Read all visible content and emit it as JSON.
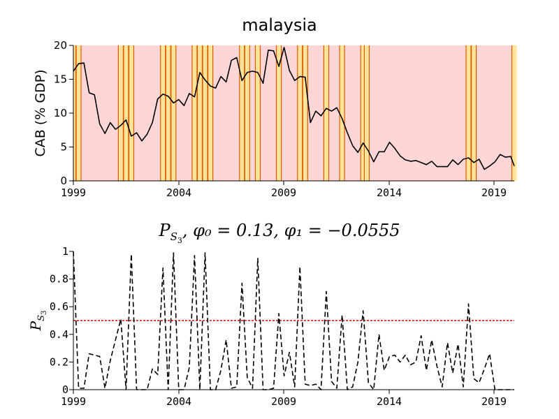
{
  "chart_data": [
    {
      "type": "line",
      "title": "malaysia",
      "xlabel": "",
      "ylabel": "CAB (% GDP)",
      "xlim": [
        1999.0,
        2019.92
      ],
      "ylim": [
        0,
        20
      ],
      "x_ticks": [
        "1999",
        "2004",
        "2009",
        "2014",
        "2019"
      ],
      "y_ticks": [
        "0",
        "5",
        "10",
        "15",
        "20"
      ],
      "background_color": "#ffd6d6",
      "crisis_band_color": "#ffe49a",
      "crisis_edge_color": "#e05a00",
      "line_color": "#000000",
      "crisis_periods": [
        1999.0,
        1999.25,
        2001.25,
        2001.5,
        2001.75,
        2003.25,
        2003.5,
        2003.75,
        2004.75,
        2005.0,
        2005.25,
        2005.5,
        2007.0,
        2007.25,
        2007.75,
        2008.75,
        2009.75,
        2010.0,
        2011.0,
        2011.75,
        2012.75,
        2012.92,
        2017.75,
        2018.0,
        2019.92
      ],
      "series": [
        {
          "x": [
            1999.0,
            1999.25,
            1999.5,
            1999.75,
            2000.0,
            2000.25,
            2000.5,
            2000.75,
            2001.0,
            2001.25,
            2001.5,
            2001.75,
            2002.0,
            2002.25,
            2002.5,
            2002.75,
            2003.0,
            2003.25,
            2003.5,
            2003.75,
            2004.0,
            2004.25,
            2004.5,
            2004.75,
            2005.0,
            2005.25,
            2005.5,
            2005.75,
            2006.0,
            2006.25,
            2006.5,
            2006.75,
            2007.0,
            2007.25,
            2007.5,
            2007.75,
            2008.0,
            2008.25,
            2008.5,
            2008.75,
            2009.0,
            2009.25,
            2009.5,
            2009.75,
            2010.0,
            2010.25,
            2010.5,
            2010.75,
            2011.0,
            2011.25,
            2011.5,
            2011.75,
            2012.0,
            2012.25,
            2012.5,
            2012.75,
            2013.0,
            2013.25,
            2013.5,
            2013.75,
            2014.0,
            2014.25,
            2014.5,
            2014.75,
            2015.0,
            2015.25,
            2015.5,
            2015.75,
            2016.0,
            2016.25,
            2016.5,
            2016.75,
            2017.0,
            2017.25,
            2017.5,
            2017.75,
            2018.0,
            2018.25,
            2018.5,
            2018.75,
            2019.0,
            2019.25,
            2019.5,
            2019.75,
            2019.92
          ],
          "values": [
            16.2,
            17.3,
            17.4,
            13.0,
            12.7,
            8.4,
            7.0,
            8.6,
            7.6,
            8.2,
            9.0,
            6.6,
            7.1,
            5.9,
            6.9,
            8.6,
            12.1,
            12.8,
            12.5,
            11.5,
            12.0,
            11.1,
            12.9,
            12.4,
            16.0,
            14.9,
            14.0,
            13.7,
            15.4,
            14.6,
            17.8,
            18.2,
            14.8,
            16.0,
            16.2,
            16.0,
            14.4,
            19.3,
            19.2,
            16.9,
            19.7,
            16.3,
            14.8,
            15.4,
            15.3,
            8.6,
            10.3,
            9.6,
            10.7,
            10.3,
            10.8,
            9.2,
            7.1,
            5.2,
            4.2,
            5.6,
            4.4,
            2.8,
            4.3,
            4.3,
            5.7,
            4.8,
            3.7,
            3.1,
            2.9,
            3.0,
            2.7,
            2.4,
            2.9,
            2.1,
            2.1,
            2.1,
            3.1,
            2.4,
            3.2,
            3.4,
            2.7,
            3.2,
            1.7,
            2.2,
            2.8,
            3.9,
            3.5,
            3.6,
            2.2
          ]
        }
      ]
    },
    {
      "type": "line",
      "title": "P_{S_3}, φ_0 = 0.13, φ_1 = −0.0555",
      "title_parts": {
        "p": "P",
        "sub": "S",
        "subsub": "3",
        "rest": ", φ₀ = 0.13, φ₁ = −0.0555"
      },
      "xlabel": "",
      "ylabel": "P_{S_3}",
      "ylabel_parts": {
        "p": "P",
        "sub": "S",
        "subsub": "3"
      },
      "xlim": [
        1999.0,
        2019.92
      ],
      "ylim": [
        0,
        1
      ],
      "x_ticks": [
        "1999",
        "2004",
        "2009",
        "2014",
        "2019"
      ],
      "y_ticks": [
        "0",
        "0.2",
        "0.4",
        "0.6",
        "0.8",
        "1"
      ],
      "threshold": 0.5,
      "threshold_color": "#dd0000",
      "line_color": "#000000",
      "line_style": "dashed",
      "series": [
        {
          "x": [
            1999.0,
            1999.25,
            1999.5,
            1999.75,
            2000.0,
            2000.25,
            2000.5,
            2000.75,
            2001.0,
            2001.25,
            2001.5,
            2001.75,
            2002.0,
            2002.25,
            2002.5,
            2002.75,
            2003.0,
            2003.25,
            2003.5,
            2003.75,
            2004.0,
            2004.25,
            2004.5,
            2004.75,
            2005.0,
            2005.25,
            2005.5,
            2005.75,
            2006.0,
            2006.25,
            2006.5,
            2006.75,
            2007.0,
            2007.25,
            2007.5,
            2007.75,
            2008.0,
            2008.25,
            2008.5,
            2008.75,
            2009.0,
            2009.25,
            2009.5,
            2009.75,
            2010.0,
            2010.25,
            2010.5,
            2010.75,
            2011.0,
            2011.25,
            2011.5,
            2011.75,
            2012.0,
            2012.25,
            2012.5,
            2012.75,
            2013.0,
            2013.25,
            2013.5,
            2013.75,
            2014.0,
            2014.25,
            2014.5,
            2014.75,
            2015.0,
            2015.25,
            2015.5,
            2015.75,
            2016.0,
            2016.25,
            2016.5,
            2016.75,
            2017.0,
            2017.25,
            2017.5,
            2017.75,
            2018.0,
            2018.25,
            2018.5,
            2018.75,
            2019.0,
            2019.25,
            2019.5,
            2019.75,
            2019.92
          ],
          "values": [
            1.0,
            0.01,
            0.01,
            0.26,
            0.25,
            0.24,
            0.01,
            0.21,
            0.36,
            0.51,
            0.0,
            0.98,
            0.0,
            0.0,
            0.0,
            0.15,
            0.11,
            0.88,
            0.0,
            0.99,
            0.0,
            0.0,
            0.16,
            0.97,
            0.0,
            0.99,
            0.0,
            0.0,
            0.14,
            0.36,
            0.01,
            0.02,
            0.77,
            0.09,
            0.01,
            0.95,
            0.0,
            0.0,
            0.01,
            0.55,
            0.1,
            0.27,
            0.02,
            0.89,
            0.04,
            0.03,
            0.04,
            0.0,
            0.71,
            0.06,
            0.01,
            0.54,
            0.0,
            0.02,
            0.2,
            0.57,
            0.05,
            0.0,
            0.4,
            0.14,
            0.24,
            0.25,
            0.2,
            0.25,
            0.18,
            0.2,
            0.39,
            0.14,
            0.36,
            0.17,
            0.02,
            0.34,
            0.12,
            0.33,
            0.02,
            0.62,
            0.08,
            0.05,
            0.15,
            0.26,
            0.0,
            0.0,
            0.0,
            0.0,
            0.0
          ]
        }
      ]
    }
  ]
}
